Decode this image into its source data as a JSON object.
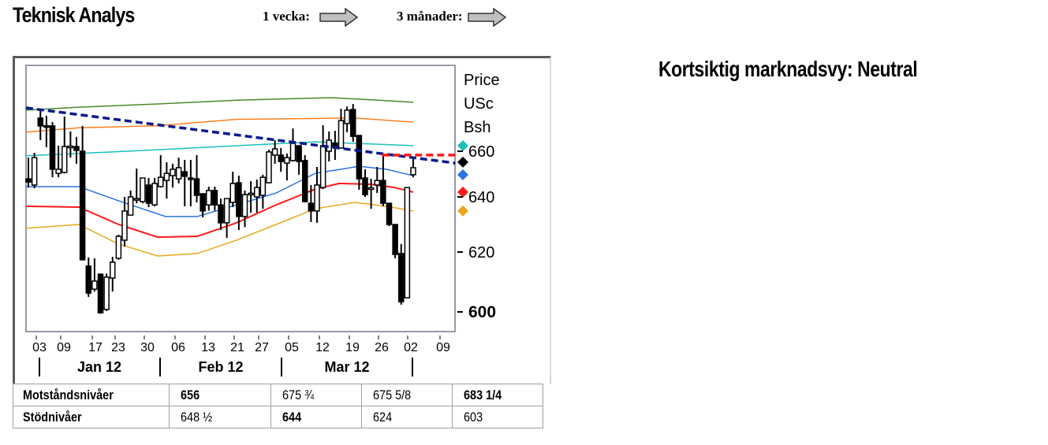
{
  "header": {
    "title": "Teknisk Analys",
    "horizon_week_label": "1 vecka:",
    "horizon_week_icon": "arrow-right-icon",
    "horizon_3m_label": "3 månader:",
    "horizon_3m_icon": "arrow-right-icon"
  },
  "market_view": "Kortsiktig marknadsvy: Neutral",
  "levels_table": {
    "rows": [
      {
        "label": "Motståndsnivåer",
        "values": [
          "656",
          "675 ¾",
          "675 5/8",
          "683 1/4"
        ],
        "bold": [
          true,
          false,
          false,
          true
        ]
      },
      {
        "label": "Stödnivåer",
        "values": [
          "648 ½",
          "644",
          "624",
          "603"
        ],
        "bold": [
          false,
          true,
          false,
          false
        ]
      }
    ]
  },
  "chart_data": {
    "type": "candlestick",
    "ylabel": [
      "Price",
      "USc",
      "Bsh"
    ],
    "y_ticks": [
      "660",
      "640",
      "620",
      "600"
    ],
    "y_tick_values": [
      660,
      640,
      620,
      600
    ],
    "y_tick_bold": [
      false,
      false,
      false,
      true
    ],
    "x_ticks": [
      "03",
      "09",
      "17",
      "23",
      "30",
      "06",
      "13",
      "21",
      "27",
      "05",
      "12",
      "19",
      "26",
      "02",
      "09"
    ],
    "months": [
      "Jan 12",
      "Feb 12",
      "Mar 12"
    ],
    "grid": false,
    "candles": [
      [
        647.9,
        657.2,
        644.1,
        646.5
      ],
      [
        645.2,
        659.3,
        643.8,
        657.2
      ],
      [
        675.6,
        680,
        665.2,
        671.9
      ],
      [
        672,
        676.7,
        661.9,
        671.8
      ],
      [
        671.9,
        673.7,
        648.6,
        652.1
      ],
      [
        650.3,
        662.6,
        648.6,
        652.1
      ],
      [
        650.7,
        676.3,
        650.3,
        662.2
      ],
      [
        662.2,
        669.3,
        657.2,
        662.4
      ],
      [
        662.2,
        666.7,
        654.5,
        660.4
      ],
      [
        660,
        671.9,
        617.4,
        617.4
      ],
      [
        615.3,
        618.2,
        605,
        606.3
      ],
      [
        607.6,
        617.9,
        606.8,
        610.3
      ],
      [
        612.6,
        612.8,
        599.4,
        599.7
      ],
      [
        600.8,
        612.8,
        600.3,
        611.6
      ],
      [
        611.3,
        618.4,
        606.8,
        616.6
      ],
      [
        617.9,
        626.3,
        617.4,
        625.7
      ],
      [
        624.3,
        640,
        622,
        634.9
      ],
      [
        633.4,
        642.8,
        633.4,
        640
      ],
      [
        639.1,
        652.4,
        637.7,
        639.4
      ],
      [
        638.3,
        648.3,
        637.7,
        648.3
      ],
      [
        645.2,
        648.3,
        636.3,
        637.7
      ],
      [
        637.1,
        648.3,
        636.6,
        645.9
      ],
      [
        644.5,
        658.3,
        644.1,
        648.6
      ],
      [
        647.2,
        655.2,
        639.4,
        650.3
      ],
      [
        649.3,
        654.5,
        644.1,
        652.1
      ],
      [
        647.9,
        657.2,
        645.9,
        652.8
      ],
      [
        651,
        656.2,
        636.6,
        649
      ],
      [
        648.3,
        656.2,
        636.6,
        648
      ],
      [
        647.9,
        658.3,
        638,
        640.7
      ],
      [
        641.4,
        641.4,
        632.6,
        634.9
      ],
      [
        637.1,
        644.5,
        635,
        642.8
      ],
      [
        642.8,
        644.5,
        635,
        637.1
      ],
      [
        637.1,
        639.4,
        628,
        630.6
      ],
      [
        630.6,
        639.4,
        625.1,
        639.4
      ],
      [
        638,
        651,
        636.3,
        645.9
      ],
      [
        646.2,
        649.3,
        628,
        632.9
      ],
      [
        632.9,
        642.8,
        629,
        641
      ],
      [
        641.4,
        646.9,
        634.3,
        641.6
      ],
      [
        640,
        647.6,
        634.3,
        644.1
      ],
      [
        640.7,
        649.7,
        635.7,
        648.6
      ],
      [
        646.2,
        660.7,
        645.9,
        659.7
      ],
      [
        658.3,
        665.2,
        654.5,
        661.1
      ],
      [
        658.3,
        661.5,
        651,
        655.5
      ],
      [
        654.8,
        659,
        647.2,
        657.2
      ],
      [
        655.9,
        670.7,
        655.5,
        663.7
      ],
      [
        662.6,
        662.6,
        649.7,
        655.5
      ],
      [
        655.9,
        658.3,
        638,
        638.3
      ],
      [
        637.7,
        645.2,
        630.9,
        634.9
      ],
      [
        634.9,
        653.1,
        630.6,
        645.2
      ],
      [
        644.1,
        672.2,
        643.4,
        662.6
      ],
      [
        660,
        669.3,
        655.5,
        665.2
      ],
      [
        663.7,
        669.6,
        656.2,
        661.9
      ],
      [
        661.5,
        680,
        661.5,
        674.4
      ],
      [
        673,
        681,
        668.9,
        679.3
      ],
      [
        679.6,
        682.2,
        664.4,
        667
      ],
      [
        667.4,
        667.4,
        643.1,
        647.9
      ],
      [
        648.3,
        652.1,
        640,
        641
      ],
      [
        643.8,
        647.9,
        635.7,
        644
      ],
      [
        645.2,
        653.1,
        641.7,
        647.2
      ],
      [
        647.2,
        658.3,
        636.6,
        637.7
      ],
      [
        637.7,
        637.7,
        629.4,
        630
      ],
      [
        630,
        630,
        617.9,
        619.2
      ],
      [
        619.5,
        622.9,
        602.4,
        603.4
      ],
      [
        604.7,
        644.1,
        604.7,
        644.1
      ],
      [
        649.7,
        656.6,
        648.6,
        652.8
      ]
    ],
    "bands": [
      {
        "name": "band-upper-3",
        "color": "#4a8a2a",
        "points": [
          [
            -0.4,
            679.3
          ],
          [
            8.4,
            680.7
          ],
          [
            21.5,
            682.2
          ],
          [
            34.6,
            684
          ],
          [
            50.4,
            685.2
          ],
          [
            58.2,
            684
          ],
          [
            64,
            683
          ]
        ]
      },
      {
        "name": "band-upper-2",
        "color": "#ff7f1e",
        "points": [
          [
            -0.4,
            669
          ],
          [
            8.4,
            671
          ],
          [
            21.5,
            672
          ],
          [
            34.6,
            675
          ],
          [
            54.3,
            675.6
          ],
          [
            64,
            673.7
          ]
        ]
      },
      {
        "name": "band-upper-1",
        "color": "#1cbfbf",
        "points": [
          [
            -0.4,
            658
          ],
          [
            8.4,
            659
          ],
          [
            21.5,
            660.7
          ],
          [
            34.6,
            662.6
          ],
          [
            47.7,
            664.4
          ],
          [
            58.2,
            663.3
          ],
          [
            64,
            662.6
          ]
        ]
      },
      {
        "name": "moving-average",
        "color": "#2b74e0",
        "points": [
          [
            -0.4,
            644.5
          ],
          [
            8.4,
            644.5
          ],
          [
            15,
            638.6
          ],
          [
            22.8,
            632.9
          ],
          [
            28.1,
            632.9
          ],
          [
            34.6,
            637.1
          ],
          [
            41.2,
            641.7
          ],
          [
            47.7,
            650.3
          ],
          [
            55,
            653.4
          ],
          [
            59.5,
            652.1
          ],
          [
            64,
            649.3
          ]
        ]
      },
      {
        "name": "band-lower-1",
        "color": "#ff1a1a",
        "points": [
          [
            -0.4,
            636.6
          ],
          [
            8.4,
            636.3
          ],
          [
            15,
            630
          ],
          [
            21.5,
            625.4
          ],
          [
            28.1,
            625.7
          ],
          [
            34.6,
            630.6
          ],
          [
            41.2,
            637.1
          ],
          [
            47.7,
            643.4
          ],
          [
            51.7,
            645.9
          ],
          [
            56.9,
            645.5
          ],
          [
            60.9,
            644.1
          ],
          [
            64,
            642.1
          ]
        ]
      },
      {
        "name": "band-lower-2",
        "color": "#e8a81a",
        "points": [
          [
            -0.4,
            628.6
          ],
          [
            8.4,
            630
          ],
          [
            15,
            622.9
          ],
          [
            21.5,
            618.7
          ],
          [
            28.1,
            619.5
          ],
          [
            34.6,
            624.3
          ],
          [
            41.2,
            630
          ],
          [
            47.7,
            635.7
          ],
          [
            54.3,
            638
          ],
          [
            59.5,
            636.6
          ],
          [
            64,
            634.9
          ]
        ]
      }
    ],
    "trendlines": [
      {
        "name": "resistance-trendline",
        "color": "#0a1a8c",
        "points": [
          [
            -0.4,
            680.4
          ],
          [
            71,
            654.8
          ]
        ]
      },
      {
        "name": "resistance-level-line",
        "color": "#ff1a1a",
        "points": [
          [
            58.8,
            658.3
          ],
          [
            71.3,
            658.3
          ]
        ]
      }
    ],
    "markers": [
      {
        "color": "#1cbfbf",
        "value": 662.6
      },
      {
        "color": "#000000",
        "value": 655.2
      },
      {
        "color": "#2b74e0",
        "value": 649.7
      },
      {
        "color": "#ff1a1a",
        "value": 642.1
      },
      {
        "color": "#e8a81a",
        "value": 634.9
      }
    ]
  }
}
